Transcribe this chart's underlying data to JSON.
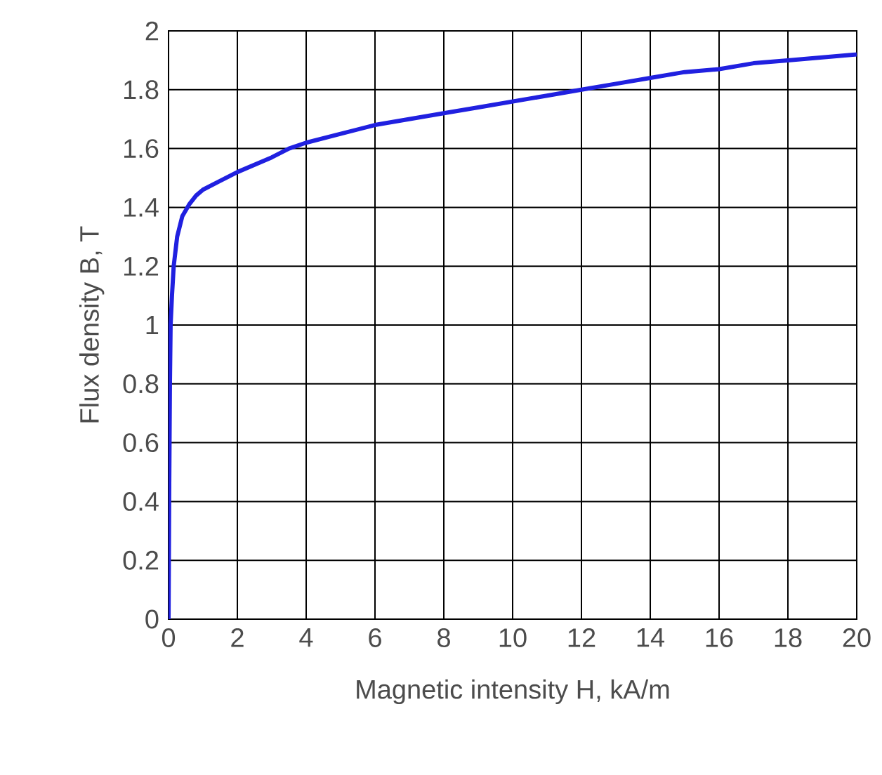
{
  "chart_data": {
    "type": "line",
    "xlabel": "Magnetic intensity H, kA/m",
    "ylabel": "Flux density B, T",
    "series": [
      {
        "color": "#2020e0",
        "x": [
          0,
          0.02,
          0.04,
          0.06,
          0.1,
          0.15,
          0.25,
          0.4,
          0.6,
          0.8,
          1,
          1.5,
          2,
          3,
          3.5,
          4,
          5,
          6,
          7,
          8,
          9,
          10,
          11,
          12,
          13,
          14,
          15,
          16,
          17,
          18,
          19,
          20
        ],
        "values": [
          0,
          0.45,
          0.8,
          1.0,
          1.1,
          1.2,
          1.3,
          1.37,
          1.41,
          1.44,
          1.46,
          1.49,
          1.52,
          1.57,
          1.6,
          1.62,
          1.65,
          1.68,
          1.7,
          1.72,
          1.74,
          1.76,
          1.78,
          1.8,
          1.82,
          1.84,
          1.86,
          1.87,
          1.89,
          1.9,
          1.91,
          1.92
        ]
      }
    ],
    "xlim": [
      0,
      20
    ],
    "ylim": [
      0,
      2
    ],
    "xticks": [
      0,
      2,
      4,
      6,
      8,
      10,
      12,
      14,
      16,
      18,
      20
    ],
    "yticks": [
      0,
      0.2,
      0.4,
      0.6,
      0.8,
      1,
      1.2,
      1.4,
      1.6,
      1.8,
      2
    ],
    "grid": true,
    "marker": "none",
    "line_style": "solid"
  }
}
